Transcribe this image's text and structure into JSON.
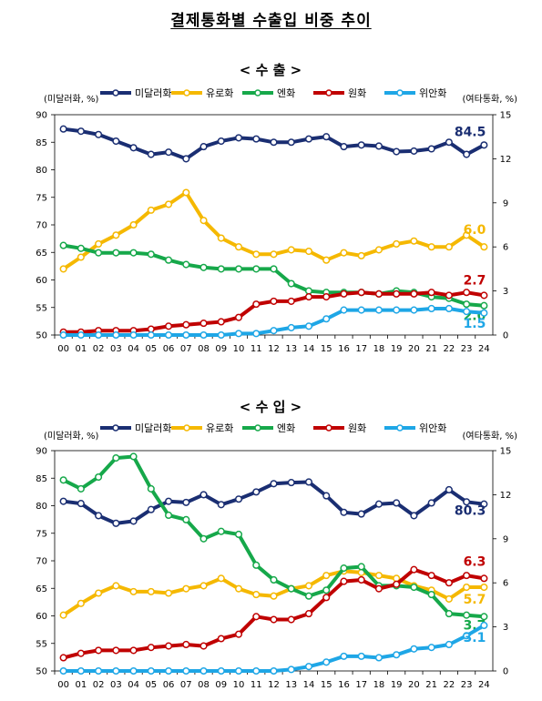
{
  "page_title": "결제통화별 수출입 비중 추이",
  "colors": {
    "usd": "#1a2e72",
    "eur": "#f5b800",
    "jpy": "#16a84a",
    "krw": "#c00000",
    "cny": "#1ea6e6"
  },
  "chart_data": [
    {
      "type": "line",
      "title": "< 수   출 >",
      "left_unit": "(미달러화, %)",
      "right_unit": "(여타통화, %)",
      "x": [
        "00",
        "01",
        "02",
        "03",
        "04",
        "05",
        "06",
        "07",
        "08",
        "09",
        "10",
        "11",
        "12",
        "13",
        "14",
        "15",
        "16",
        "17",
        "18",
        "19",
        "20",
        "21",
        "22",
        "23",
        "24"
      ],
      "ylim_left": [
        50,
        90
      ],
      "ylim_right": [
        0,
        15
      ],
      "yticks_left": [
        "50",
        "55",
        "60",
        "65",
        "70",
        "75",
        "80",
        "85",
        "90"
      ],
      "yticks_right": [
        "0",
        "3",
        "6",
        "9",
        "12",
        "15"
      ],
      "legend": [
        "미달러화",
        "유로화",
        "엔화",
        "원화",
        "위안화"
      ],
      "series": [
        {
          "name": "미달러화",
          "axis": "left",
          "color": "#1a2e72",
          "values": [
            87.4,
            87.0,
            86.4,
            85.2,
            84.0,
            82.8,
            83.2,
            82.0,
            84.2,
            85.2,
            85.8,
            85.6,
            85.0,
            85.0,
            85.6,
            86.0,
            84.2,
            84.5,
            84.3,
            83.3,
            83.4,
            83.8,
            85.0,
            82.8,
            84.5
          ],
          "end_label": "84.5"
        },
        {
          "name": "유로화",
          "axis": "right",
          "color": "#f5b800",
          "values": [
            4.5,
            5.3,
            6.2,
            6.8,
            7.5,
            8.5,
            8.9,
            9.7,
            7.8,
            6.6,
            6.0,
            5.5,
            5.5,
            5.8,
            5.7,
            5.1,
            5.6,
            5.4,
            5.8,
            6.2,
            6.4,
            6.0,
            6.0,
            6.8,
            6.0
          ],
          "end_label": "6.0"
        },
        {
          "name": "엔화",
          "axis": "right",
          "color": "#16a84a",
          "values": [
            6.1,
            5.9,
            5.6,
            5.6,
            5.6,
            5.5,
            5.1,
            4.8,
            4.6,
            4.5,
            4.5,
            4.5,
            4.5,
            3.5,
            3.0,
            2.9,
            2.9,
            2.9,
            2.8,
            3.0,
            2.9,
            2.6,
            2.5,
            2.1,
            2.0
          ],
          "end_label": "2.0"
        },
        {
          "name": "원화",
          "axis": "right",
          "color": "#c00000",
          "values": [
            0.2,
            0.2,
            0.3,
            0.3,
            0.3,
            0.4,
            0.6,
            0.7,
            0.8,
            0.9,
            1.2,
            2.1,
            2.3,
            2.3,
            2.6,
            2.6,
            2.8,
            2.9,
            2.8,
            2.8,
            2.8,
            2.9,
            2.7,
            2.9,
            2.7
          ],
          "end_label": "2.7"
        },
        {
          "name": "위안화",
          "axis": "right",
          "color": "#1ea6e6",
          "values": [
            0.0,
            0.0,
            0.0,
            0.0,
            0.0,
            0.0,
            0.0,
            0.0,
            0.0,
            0.0,
            0.1,
            0.1,
            0.3,
            0.5,
            0.6,
            1.1,
            1.7,
            1.7,
            1.7,
            1.7,
            1.7,
            1.8,
            1.8,
            1.6,
            1.5
          ],
          "end_label": "1.5"
        }
      ]
    },
    {
      "type": "line",
      "title": "< 수   입 >",
      "left_unit": "(미달러화, %)",
      "right_unit": "(여타통화, %)",
      "x": [
        "00",
        "01",
        "02",
        "03",
        "04",
        "05",
        "06",
        "07",
        "08",
        "09",
        "10",
        "11",
        "12",
        "13",
        "14",
        "15",
        "16",
        "17",
        "18",
        "19",
        "20",
        "21",
        "22",
        "23",
        "24"
      ],
      "ylim_left": [
        50,
        90
      ],
      "ylim_right": [
        0,
        15
      ],
      "yticks_left": [
        "50",
        "55",
        "60",
        "65",
        "70",
        "75",
        "80",
        "85",
        "90"
      ],
      "yticks_right": [
        "0",
        "3",
        "6",
        "9",
        "12",
        "15"
      ],
      "legend": [
        "미달러화",
        "유로화",
        "엔화",
        "원화",
        "위안화"
      ],
      "series": [
        {
          "name": "미달러화",
          "axis": "left",
          "color": "#1a2e72",
          "values": [
            80.8,
            80.4,
            78.2,
            76.8,
            77.2,
            79.3,
            80.8,
            80.6,
            82.0,
            80.2,
            81.2,
            82.5,
            84.0,
            84.2,
            84.3,
            81.8,
            78.8,
            78.5,
            80.3,
            80.5,
            78.2,
            80.5,
            82.9,
            80.7,
            80.3
          ],
          "end_label": "80.3"
        },
        {
          "name": "유로화",
          "axis": "right",
          "color": "#f5b800",
          "values": [
            3.8,
            4.6,
            5.3,
            5.8,
            5.4,
            5.4,
            5.3,
            5.6,
            5.8,
            6.3,
            5.6,
            5.2,
            5.1,
            5.6,
            5.8,
            6.5,
            6.8,
            6.7,
            6.5,
            6.3,
            5.8,
            5.5,
            4.9,
            5.7,
            5.7
          ],
          "end_label": "5.7"
        },
        {
          "name": "엔화",
          "axis": "right",
          "color": "#16a84a",
          "values": [
            13.0,
            12.4,
            13.2,
            14.5,
            14.6,
            12.4,
            10.6,
            10.3,
            9.0,
            9.5,
            9.3,
            7.2,
            6.2,
            5.6,
            5.1,
            5.5,
            7.0,
            7.1,
            5.8,
            5.8,
            5.7,
            5.2,
            3.9,
            3.8,
            3.7
          ],
          "end_label": "3.7"
        },
        {
          "name": "원화",
          "axis": "right",
          "color": "#c00000",
          "values": [
            0.9,
            1.2,
            1.4,
            1.4,
            1.4,
            1.6,
            1.7,
            1.8,
            1.7,
            2.2,
            2.5,
            3.7,
            3.5,
            3.5,
            3.9,
            5.0,
            6.1,
            6.2,
            5.6,
            5.9,
            6.9,
            6.5,
            6.0,
            6.5,
            6.3
          ],
          "end_label": "6.3"
        },
        {
          "name": "위안화",
          "axis": "right",
          "color": "#1ea6e6",
          "values": [
            0.0,
            0.0,
            0.0,
            0.0,
            0.0,
            0.0,
            0.0,
            0.0,
            0.0,
            0.0,
            0.0,
            0.0,
            0.0,
            0.1,
            0.3,
            0.6,
            1.0,
            1.0,
            0.9,
            1.1,
            1.5,
            1.6,
            1.8,
            2.4,
            3.1
          ],
          "end_label": "3.1"
        }
      ]
    }
  ]
}
